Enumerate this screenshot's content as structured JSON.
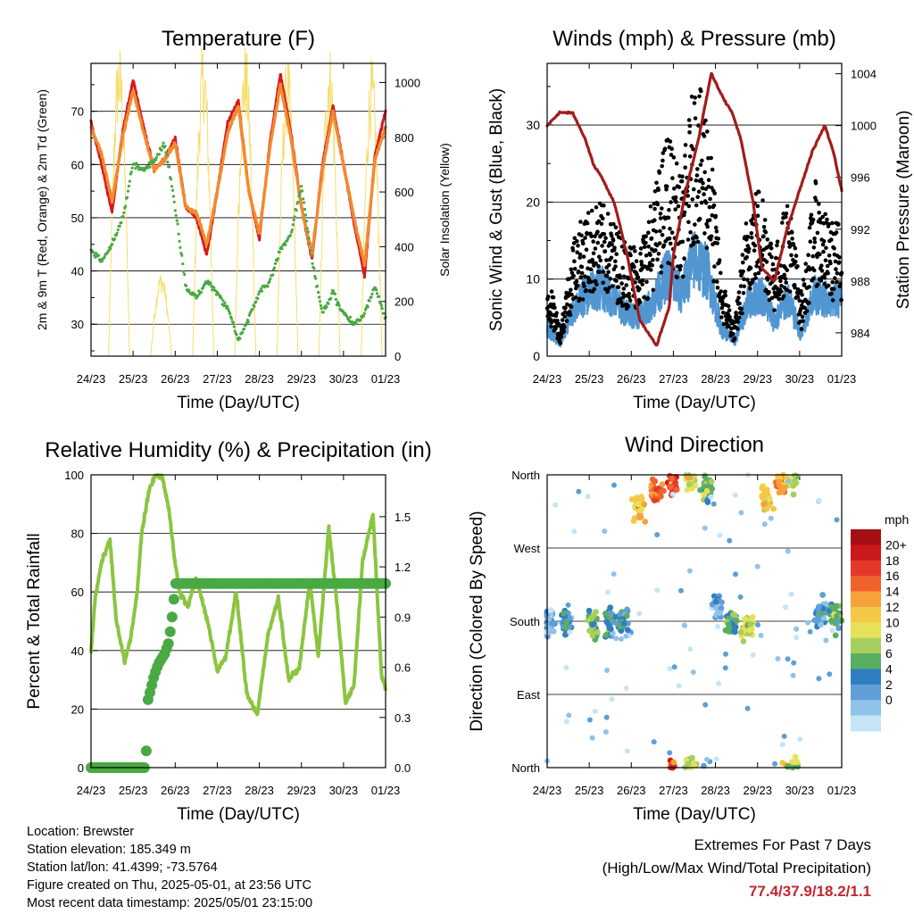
{
  "chart_data": [
    {
      "type": "line",
      "title": "Temperature (F)",
      "xlabel": "Time (Day/UTC)",
      "ylabel": "2m & 9m T (Red, Orange) & 2m Td (Green)",
      "ylabel_right": "Solar Insolation (Yellow)",
      "x_ticks": [
        "24/23",
        "25/23",
        "26/23",
        "27/23",
        "28/23",
        "29/23",
        "30/23",
        "01/23"
      ],
      "ylim": [
        24,
        79
      ],
      "y_ticks": [
        30,
        40,
        50,
        60,
        70
      ],
      "ylim_right": [
        0,
        1070
      ],
      "y_ticks_right": [
        0,
        200,
        400,
        600,
        800,
        1000
      ],
      "grid": "horizontal",
      "x": [
        0,
        0.25,
        0.5,
        0.75,
        1,
        1.25,
        1.5,
        1.75,
        2,
        2.25,
        2.5,
        2.75,
        3,
        3.25,
        3.5,
        3.75,
        4,
        4.25,
        4.5,
        4.75,
        5,
        5.25,
        5.5,
        5.75,
        6,
        6.25,
        6.5,
        6.75,
        7
      ],
      "series": [
        {
          "name": "2m T",
          "color": "#d7191c",
          "values": [
            68,
            60,
            51,
            66,
            76,
            67,
            59,
            61,
            65,
            52,
            50,
            43,
            55,
            68,
            72,
            55,
            46,
            64,
            77,
            66,
            52,
            42,
            60,
            71,
            60,
            49,
            39,
            62,
            70
          ]
        },
        {
          "name": "9m T",
          "color": "#f28a30",
          "values": [
            67,
            62,
            53,
            65,
            74,
            66,
            59,
            61,
            64,
            52,
            51,
            45,
            55,
            66,
            71,
            55,
            47,
            63,
            75,
            65,
            52,
            43,
            59,
            70,
            60,
            50,
            41,
            61,
            67
          ]
        },
        {
          "name": "2m Td",
          "color": "#49a942",
          "values": [
            44,
            42,
            45,
            50,
            60,
            59,
            61,
            64,
            52,
            37,
            35,
            38,
            36,
            33,
            27,
            31,
            36,
            38,
            44,
            47,
            56,
            42,
            32,
            36,
            32,
            30,
            32,
            37,
            31
          ]
        }
      ],
      "solar_peaks": [
        650,
        1000,
        270,
        1000,
        1000,
        960,
        1000,
        950
      ]
    },
    {
      "type": "scatter",
      "title": "Winds (mph) & Pressure (mb)",
      "xlabel": "Time (Day/UTC)",
      "ylabel": "Sonic Wind & Gust (Blue, Black)",
      "ylabel_right": "Station Pressure (Maroon)",
      "x_ticks": [
        "24/23",
        "25/23",
        "26/23",
        "27/23",
        "28/23",
        "29/23",
        "30/23",
        "01/23"
      ],
      "ylim": [
        0,
        38
      ],
      "y_ticks": [
        0,
        10,
        20,
        30
      ],
      "ylim_right": [
        982.2,
        1004.8
      ],
      "y_ticks_right": [
        984,
        988,
        992,
        996,
        1000,
        1004
      ],
      "grid": "horizontal",
      "pressure": {
        "x": [
          0,
          0.3,
          0.6,
          0.9,
          1.1,
          1.3,
          1.6,
          1.9,
          2.2,
          2.6,
          2.9,
          3.0,
          3.3,
          3.6,
          3.9,
          4.2,
          4.4,
          4.6,
          4.9,
          5.1,
          5.4,
          5.7,
          6.0,
          6.3,
          6.6,
          6.8,
          7.0
        ],
        "values": [
          1000,
          1001,
          1001,
          999,
          997,
          996,
          994,
          990,
          985,
          983,
          986,
          990,
          995,
          999,
          1004,
          1002,
          1001,
          999,
          994,
          989,
          988,
          992,
          995,
          998,
          1000,
          998,
          995
        ]
      },
      "wind_level": [
        4,
        2,
        7,
        9,
        10,
        8,
        6,
        6,
        8,
        12,
        9,
        14,
        12,
        4,
        2,
        8,
        9,
        5,
        8,
        3,
        9,
        8,
        8
      ],
      "gust_level": [
        8,
        3,
        12,
        14,
        15,
        13,
        11,
        11,
        16,
        22,
        17,
        27,
        24,
        8,
        3,
        15,
        17,
        10,
        16,
        6,
        17,
        13,
        13
      ]
    },
    {
      "type": "line",
      "title": "Relative Humidity (%) & Precipitation (in)",
      "xlabel": "Time (Day/UTC)",
      "ylabel": "Percent & Total Rainfall",
      "x_ticks": [
        "24/23",
        "25/23",
        "26/23",
        "27/23",
        "28/23",
        "29/23",
        "30/23",
        "01/23"
      ],
      "ylim": [
        0,
        100
      ],
      "y_ticks": [
        0,
        20,
        40,
        60,
        80,
        100
      ],
      "ylim_right": [
        0,
        1.75
      ],
      "y_ticks_right": [
        "0.0",
        "0.3",
        "0.6",
        "0.9",
        "1.2",
        "1.5"
      ],
      "grid": "horizontal",
      "rh": {
        "color": "#8bc53f",
        "x": [
          0,
          0.1,
          0.25,
          0.45,
          0.6,
          0.8,
          0.95,
          1.1,
          1.2,
          1.4,
          1.55,
          1.7,
          1.85,
          2.0,
          2.1,
          2.3,
          2.5,
          2.8,
          3.0,
          3.2,
          3.45,
          3.7,
          3.95,
          4.2,
          4.45,
          4.7,
          4.95,
          5.2,
          5.4,
          5.65,
          5.85,
          6.05,
          6.25,
          6.45,
          6.7,
          6.9,
          7.0
        ],
        "values": [
          40,
          58,
          70,
          78,
          50,
          36,
          45,
          60,
          80,
          96,
          100,
          99,
          88,
          70,
          60,
          55,
          65,
          48,
          33,
          38,
          60,
          25,
          18,
          45,
          58,
          30,
          34,
          64,
          38,
          82,
          55,
          22,
          28,
          70,
          87,
          32,
          27
        ]
      },
      "precip": {
        "color": "#49a942",
        "x": [
          0,
          1.3,
          1.35,
          1.5,
          1.6,
          1.75,
          1.85,
          1.95,
          2.0,
          7.0
        ],
        "values": [
          0.0,
          0.0,
          0.4,
          0.55,
          0.62,
          0.68,
          0.75,
          0.95,
          1.1,
          1.1
        ]
      }
    },
    {
      "type": "scatter",
      "title": "Wind Direction",
      "xlabel": "Time (Day/UTC)",
      "ylabel": "Direction (Colored By Speed)",
      "x_ticks": [
        "24/23",
        "25/23",
        "26/23",
        "27/23",
        "28/23",
        "29/23",
        "30/23",
        "01/23"
      ],
      "y_ticks": [
        "North",
        "East",
        "South",
        "West",
        "North"
      ],
      "ylim": [
        0,
        360
      ],
      "colorbar": {
        "title": "mph",
        "labels": [
          "20+",
          "18",
          "16",
          "14",
          "12",
          "10",
          "8",
          "6",
          "4",
          "2",
          "0"
        ],
        "colors": [
          "#a50f15",
          "#cb181d",
          "#e4392a",
          "#f0622d",
          "#f7a13a",
          "#f4c847",
          "#e6e157",
          "#a6cf5f",
          "#5aae61",
          "#2f7fc0",
          "#5e9fd6",
          "#91c3ea",
          "#c6e4f7"
        ]
      },
      "clusters": [
        {
          "x": 0.05,
          "dir": 180,
          "spd": 3
        },
        {
          "x": 0.45,
          "dir": 180,
          "spd": 5
        },
        {
          "x": 1.1,
          "dir": 175,
          "spd": 8
        },
        {
          "x": 1.5,
          "dir": 180,
          "spd": 6
        },
        {
          "x": 1.8,
          "dir": 180,
          "spd": 5
        },
        {
          "x": 2.2,
          "dir": 320,
          "spd": 12
        },
        {
          "x": 2.6,
          "dir": 340,
          "spd": 16
        },
        {
          "x": 3.0,
          "dir": 350,
          "spd": 18
        },
        {
          "x": 3.4,
          "dir": 358,
          "spd": 10
        },
        {
          "x": 3.8,
          "dir": 345,
          "spd": 7
        },
        {
          "x": 4.05,
          "dir": 200,
          "spd": 3
        },
        {
          "x": 4.4,
          "dir": 180,
          "spd": 7
        },
        {
          "x": 4.75,
          "dir": 175,
          "spd": 10
        },
        {
          "x": 5.2,
          "dir": 330,
          "spd": 12
        },
        {
          "x": 5.55,
          "dir": 350,
          "spd": 14
        },
        {
          "x": 5.85,
          "dir": 355,
          "spd": 9
        },
        {
          "x": 6.5,
          "dir": 190,
          "spd": 4
        },
        {
          "x": 6.85,
          "dir": 185,
          "spd": 7
        }
      ]
    }
  ],
  "info": {
    "location": "Location: Brewster",
    "elevation": "Station elevation: 185.349 m",
    "latlon": "Station lat/lon: 41.4399; -73.5764",
    "created": "Figure created on Thu, 2025-05-01, at 23:56 UTC",
    "recent": "Most recent data timestamp: 2025/05/01 23:15:00"
  },
  "extremes": {
    "title": "Extremes For Past 7 Days",
    "subtitle": "(High/Low/Max Wind/Total Precipitation)",
    "values": "77.4/37.9/18.2/1.1"
  }
}
